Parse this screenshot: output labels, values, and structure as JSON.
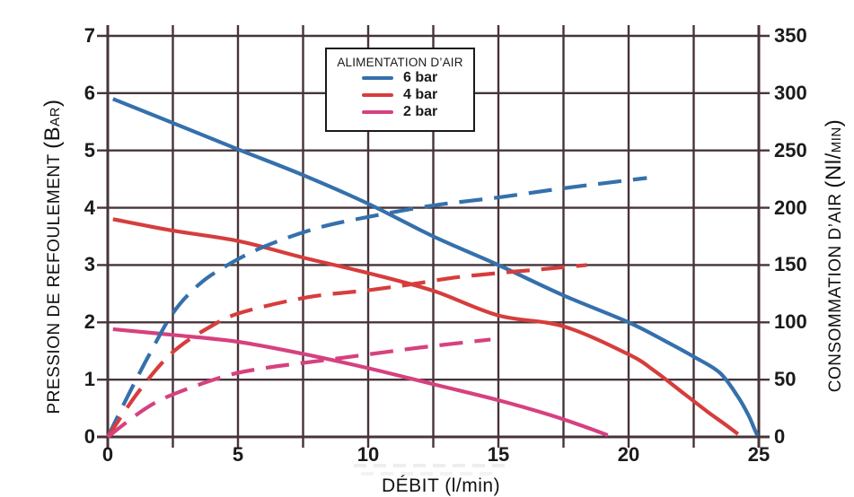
{
  "legend": {
    "title": "ALIMENTATION D’AIR",
    "items": [
      {
        "label": "6 bar",
        "color": "#3570ac"
      },
      {
        "label": "4 bar",
        "color": "#d63d3c"
      },
      {
        "label": "2 bar",
        "color": "#d6417f"
      }
    ]
  },
  "axes": {
    "left": {
      "title_main": "PRESSION DE REFOULEMENT ",
      "title_big": "(B",
      "title_small": "AR",
      "title_close": ")",
      "ticks": [
        "0",
        "1",
        "2",
        "3",
        "4",
        "5",
        "6",
        "7"
      ]
    },
    "right": {
      "title_main": "CONSOMMATION D’AIR ",
      "title_big": "(Nl/",
      "title_small": "MIN",
      "title_close": ")",
      "ticks": [
        "0",
        "50",
        "100",
        "150",
        "200",
        "250",
        "300",
        "350"
      ]
    },
    "x": {
      "title": "DÉBIT (l/min)",
      "ticks": [
        "0",
        "5",
        "10",
        "15",
        "20",
        "25"
      ]
    }
  },
  "chart_data": {
    "type": "line",
    "title": "",
    "xlabel": "DÉBIT (l/min)",
    "ylabel_left": "PRESSION DE REFOULEMENT (Bar)",
    "ylabel_right": "CONSOMMATION D’AIR (Nl/min)",
    "xlim": [
      0,
      25
    ],
    "ylim_left": [
      0,
      7
    ],
    "ylim_right": [
      0,
      350
    ],
    "x_grid_step": 2.5,
    "y_grid_step_left": 1,
    "grid": true,
    "grid_color": "#47343a",
    "legend_title": "ALIMENTATION D’AIR",
    "legend_position": "top-center",
    "series": [
      {
        "name": "6 bar – pression de refoulement",
        "axis": "left",
        "line": "solid",
        "color": "#3570ac",
        "points": [
          [
            0.2,
            5.9
          ],
          [
            2.5,
            5.48
          ],
          [
            5,
            5.02
          ],
          [
            7.5,
            4.57
          ],
          [
            10,
            4.07
          ],
          [
            12.5,
            3.5
          ],
          [
            15,
            3.0
          ],
          [
            17.5,
            2.47
          ],
          [
            20,
            2.0
          ],
          [
            21.5,
            1.65
          ],
          [
            22.5,
            1.4
          ],
          [
            23.5,
            1.12
          ],
          [
            24.2,
            0.7
          ],
          [
            24.6,
            0.38
          ],
          [
            24.85,
            0.12
          ],
          [
            24.95,
            0.02
          ]
        ]
      },
      {
        "name": "4 bar – pression de refoulement",
        "axis": "left",
        "line": "solid",
        "color": "#d63d3c",
        "points": [
          [
            0.2,
            3.8
          ],
          [
            2.5,
            3.6
          ],
          [
            5,
            3.42
          ],
          [
            7.5,
            3.13
          ],
          [
            10,
            2.86
          ],
          [
            12.5,
            2.55
          ],
          [
            15,
            2.12
          ],
          [
            17.5,
            1.93
          ],
          [
            20,
            1.44
          ],
          [
            21,
            1.15
          ],
          [
            22,
            0.8
          ],
          [
            23,
            0.45
          ],
          [
            23.7,
            0.22
          ],
          [
            24.2,
            0.05
          ]
        ]
      },
      {
        "name": "2 bar – pression de refoulement",
        "axis": "left",
        "line": "solid",
        "color": "#d6417f",
        "points": [
          [
            0.2,
            1.88
          ],
          [
            2.5,
            1.78
          ],
          [
            5,
            1.66
          ],
          [
            7.5,
            1.45
          ],
          [
            10,
            1.2
          ],
          [
            12.5,
            0.92
          ],
          [
            15,
            0.64
          ],
          [
            17,
            0.38
          ],
          [
            18.3,
            0.18
          ],
          [
            19.2,
            0.03
          ]
        ]
      },
      {
        "name": "6 bar – consommation d’air",
        "axis": "right",
        "line": "dashed",
        "color": "#3570ac",
        "points": [
          [
            0,
            0
          ],
          [
            0.8,
            37
          ],
          [
            1.6,
            72
          ],
          [
            2.5,
            108
          ],
          [
            3.5,
            133
          ],
          [
            4.6,
            150
          ],
          [
            6,
            166
          ],
          [
            8,
            182
          ],
          [
            10,
            192
          ],
          [
            12.5,
            202
          ],
          [
            15,
            209
          ],
          [
            17.5,
            217
          ],
          [
            20.7,
            226
          ]
        ]
      },
      {
        "name": "4 bar – consommation d’air",
        "axis": "right",
        "line": "dashed",
        "color": "#d63d3c",
        "points": [
          [
            0,
            0
          ],
          [
            1.2,
            40
          ],
          [
            2.5,
            74
          ],
          [
            4,
            97
          ],
          [
            5.2,
            109
          ],
          [
            7.7,
            122
          ],
          [
            10,
            128
          ],
          [
            11.6,
            133
          ],
          [
            13.3,
            139
          ],
          [
            15,
            143
          ],
          [
            16.5,
            146
          ],
          [
            18.4,
            150
          ]
        ]
      },
      {
        "name": "2 bar – consommation d’air",
        "axis": "right",
        "line": "dashed",
        "color": "#d6417f",
        "points": [
          [
            0,
            0
          ],
          [
            1.4,
            24
          ],
          [
            2.5,
            37
          ],
          [
            4.5,
            53
          ],
          [
            6,
            60
          ],
          [
            8,
            66
          ],
          [
            10,
            72
          ],
          [
            12,
            78
          ],
          [
            14.7,
            85
          ]
        ]
      }
    ]
  }
}
